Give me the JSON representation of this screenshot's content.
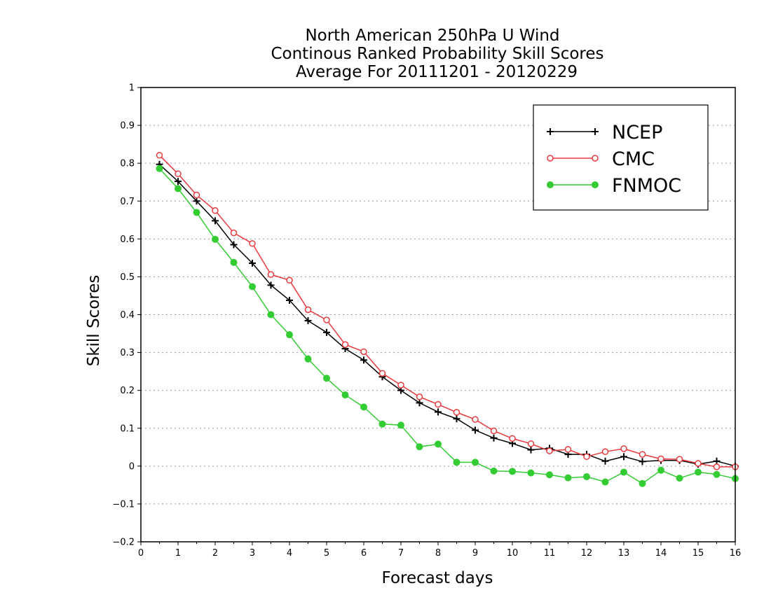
{
  "chart_data": {
    "type": "line",
    "title": [
      "North American 250hPa U Wind",
      "Continous Ranked Probability Skill Scores",
      "Average For 20111201 - 20120229"
    ],
    "xlabel": "Forecast days",
    "ylabel": "Skill Scores",
    "xlim": [
      0,
      16
    ],
    "ylim": [
      -0.2,
      1
    ],
    "xticks": [
      "0",
      "1",
      "2",
      "3",
      "4",
      "5",
      "6",
      "7",
      "8",
      "9",
      "10",
      "11",
      "12",
      "13",
      "14",
      "15",
      "16"
    ],
    "yticks": [
      "−0.2",
      "−0.1",
      "0",
      "0.1",
      "0.2",
      "0.3",
      "0.4",
      "0.5",
      "0.6",
      "0.7",
      "0.8",
      "0.9",
      "1"
    ],
    "grid": true,
    "legend_position": "top-right",
    "x": [
      0.5,
      1,
      1.5,
      2,
      2.5,
      3,
      3.5,
      4,
      4.5,
      5,
      5.5,
      6,
      6.5,
      7,
      7.5,
      8,
      8.5,
      9,
      9.5,
      10,
      10.5,
      11,
      11.5,
      12,
      12.5,
      13,
      13.5,
      14,
      14.5,
      15,
      15.5,
      16
    ],
    "series": [
      {
        "name": "NCEP",
        "color": "#000000",
        "marker": "plus",
        "values": [
          0.797,
          0.752,
          0.7,
          0.648,
          0.585,
          0.536,
          0.478,
          0.438,
          0.384,
          0.353,
          0.31,
          0.28,
          0.236,
          0.2,
          0.167,
          0.143,
          0.125,
          0.095,
          0.074,
          0.06,
          0.043,
          0.047,
          0.031,
          0.031,
          0.013,
          0.025,
          0.012,
          0.015,
          0.015,
          0.005,
          0.013,
          0.0
        ]
      },
      {
        "name": "CMC",
        "color": "#e8393c",
        "marker": "open-circle",
        "values": [
          0.821,
          0.772,
          0.716,
          0.675,
          0.616,
          0.588,
          0.506,
          0.491,
          0.413,
          0.386,
          0.321,
          0.302,
          0.245,
          0.214,
          0.183,
          0.163,
          0.142,
          0.123,
          0.093,
          0.073,
          0.059,
          0.04,
          0.044,
          0.025,
          0.038,
          0.046,
          0.031,
          0.019,
          0.018,
          0.007,
          -0.002,
          -0.002
        ]
      },
      {
        "name": "FNMOC",
        "color": "#33cc33",
        "marker": "filled-circle",
        "values": [
          0.786,
          0.733,
          0.67,
          0.599,
          0.538,
          0.474,
          0.4,
          0.347,
          0.283,
          0.232,
          0.188,
          0.156,
          0.111,
          0.108,
          0.051,
          0.058,
          0.01,
          0.01,
          -0.013,
          -0.014,
          -0.018,
          -0.023,
          -0.031,
          -0.028,
          -0.042,
          -0.016,
          -0.046,
          -0.011,
          -0.032,
          -0.016,
          -0.022,
          -0.033
        ]
      }
    ]
  }
}
